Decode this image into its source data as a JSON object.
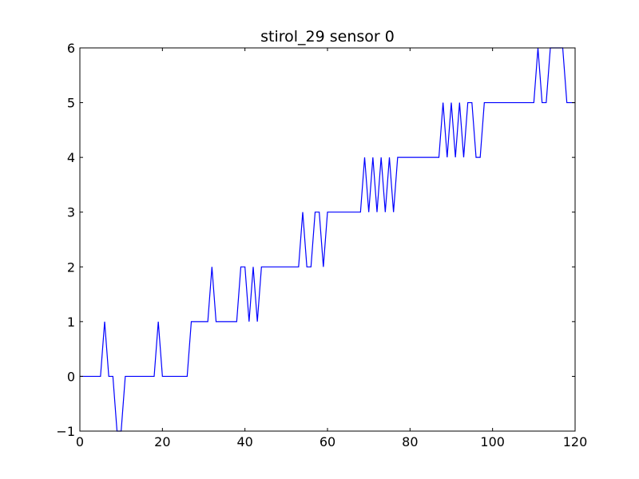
{
  "chart_data": {
    "type": "line",
    "title": "stirol_29 sensor 0",
    "xlabel": "",
    "ylabel": "",
    "xlim": [
      0,
      120
    ],
    "ylim": [
      -1,
      6
    ],
    "x_ticks": [
      0,
      20,
      40,
      60,
      80,
      100,
      120
    ],
    "y_ticks": [
      -1,
      0,
      1,
      2,
      3,
      4,
      5,
      6
    ],
    "grid": false,
    "line_color": "#0000ff",
    "series": [
      {
        "x": [
          0,
          1,
          2,
          3,
          4,
          5,
          6,
          7,
          8,
          9,
          10,
          11,
          12,
          13,
          14,
          15,
          16,
          17,
          18,
          19,
          20,
          21,
          22,
          23,
          24,
          25,
          26,
          27,
          28,
          29,
          30,
          31,
          32,
          33,
          34,
          35,
          36,
          37,
          38,
          39,
          40,
          41,
          42,
          43,
          44,
          45,
          46,
          47,
          48,
          49,
          50,
          51,
          52,
          53,
          54,
          55,
          56,
          57,
          58,
          59,
          60,
          61,
          62,
          63,
          64,
          65,
          66,
          67,
          68,
          69,
          70,
          71,
          72,
          73,
          74,
          75,
          76,
          77,
          78,
          79,
          80,
          81,
          82,
          83,
          84,
          85,
          86,
          87,
          88,
          89,
          90,
          91,
          92,
          93,
          94,
          95,
          96,
          97,
          98,
          99,
          100,
          101,
          102,
          103,
          104,
          105,
          106,
          107,
          108,
          109,
          110,
          111,
          112,
          113,
          114,
          115,
          116,
          117,
          118,
          119,
          120
        ],
        "values": [
          0,
          0,
          0,
          0,
          0,
          0,
          1,
          0,
          0,
          -1,
          -1,
          0,
          0,
          0,
          0,
          0,
          0,
          0,
          0,
          1,
          0,
          0,
          0,
          0,
          0,
          0,
          0,
          1,
          1,
          1,
          1,
          1,
          2,
          1,
          1,
          1,
          1,
          1,
          1,
          2,
          2,
          1,
          2,
          1,
          2,
          2,
          2,
          2,
          2,
          2,
          2,
          2,
          2,
          2,
          3,
          2,
          2,
          3,
          3,
          2,
          3,
          3,
          3,
          3,
          3,
          3,
          3,
          3,
          3,
          4,
          3,
          4,
          3,
          4,
          3,
          4,
          3,
          4,
          4,
          4,
          4,
          4,
          4,
          4,
          4,
          4,
          4,
          4,
          5,
          4,
          5,
          4,
          5,
          4,
          5,
          5,
          4,
          4,
          5,
          5,
          5,
          5,
          5,
          5,
          5,
          5,
          5,
          5,
          5,
          5,
          5,
          6,
          5,
          5,
          6,
          6,
          6,
          6,
          5,
          5,
          5
        ]
      }
    ]
  }
}
